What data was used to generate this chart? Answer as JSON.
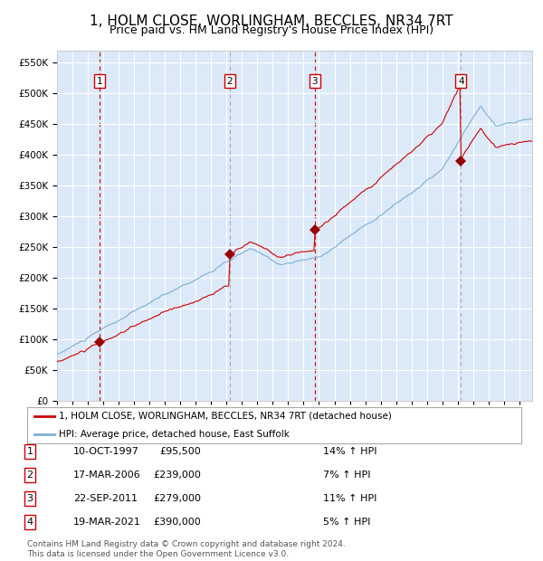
{
  "title": "1, HOLM CLOSE, WORLINGHAM, BECCLES, NR34 7RT",
  "subtitle": "Price paid vs. HM Land Registry's House Price Index (HPI)",
  "title_fontsize": 11,
  "subtitle_fontsize": 9,
  "plot_bg_color": "#dce9f8",
  "hpi_line_color": "#7ab0d4",
  "price_line_color": "#cc0000",
  "sale_marker_color": "#990000",
  "ylim": [
    0,
    570000
  ],
  "xlim_start": 1995.0,
  "xlim_end": 2025.83,
  "ytick_step": 50000,
  "sales": [
    {
      "num": 1,
      "year": 1997.78,
      "price": 95500,
      "label": "1",
      "vline": "red"
    },
    {
      "num": 2,
      "year": 2006.21,
      "price": 239000,
      "label": "2",
      "vline": "gray"
    },
    {
      "num": 3,
      "year": 2011.73,
      "price": 279000,
      "label": "3",
      "vline": "red"
    },
    {
      "num": 4,
      "year": 2021.21,
      "price": 390000,
      "label": "4",
      "vline": "gray"
    }
  ],
  "legend_line1": "1, HOLM CLOSE, WORLINGHAM, BECCLES, NR34 7RT (detached house)",
  "legend_line2": "HPI: Average price, detached house, East Suffolk",
  "table_rows": [
    [
      "1",
      "10-OCT-1997",
      "£95,500",
      "14% ↑ HPI"
    ],
    [
      "2",
      "17-MAR-2006",
      "£239,000",
      "7% ↑ HPI"
    ],
    [
      "3",
      "22-SEP-2011",
      "£279,000",
      "11% ↑ HPI"
    ],
    [
      "4",
      "19-MAR-2021",
      "£390,000",
      "5% ↑ HPI"
    ]
  ],
  "footer": "Contains HM Land Registry data © Crown copyright and database right 2024.\nThis data is licensed under the Open Government Licence v3.0.",
  "footer_fontsize": 6.5,
  "grid_color": "#ffffff"
}
